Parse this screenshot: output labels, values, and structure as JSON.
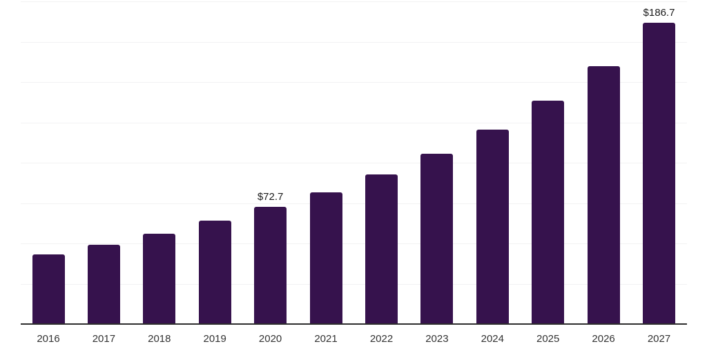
{
  "chart_data": {
    "type": "bar",
    "title": "",
    "xlabel": "",
    "ylabel": "",
    "categories": [
      "2016",
      "2017",
      "2018",
      "2019",
      "2020",
      "2021",
      "2022",
      "2023",
      "2024",
      "2025",
      "2026",
      "2027"
    ],
    "values": [
      43.2,
      49.0,
      56.1,
      64.0,
      72.7,
      81.6,
      92.7,
      105.5,
      120.5,
      138.3,
      159.7,
      186.7
    ],
    "data_labels": [
      {
        "category": "2020",
        "text": "$72.7"
      },
      {
        "category": "2027",
        "text": "$186.7"
      }
    ],
    "ylim": [
      0,
      200
    ],
    "gridline_step": 25,
    "grid": "horizontal-only",
    "legend": "none",
    "y_axis_tick_labels": "none",
    "bar_color": "#36124D",
    "axis_color": "#2d2d2d",
    "gridline_color": "#f2f2f3",
    "data_label_color": "#1a1a1a",
    "tick_label_color": "#333333",
    "background_color": "#ffffff"
  }
}
